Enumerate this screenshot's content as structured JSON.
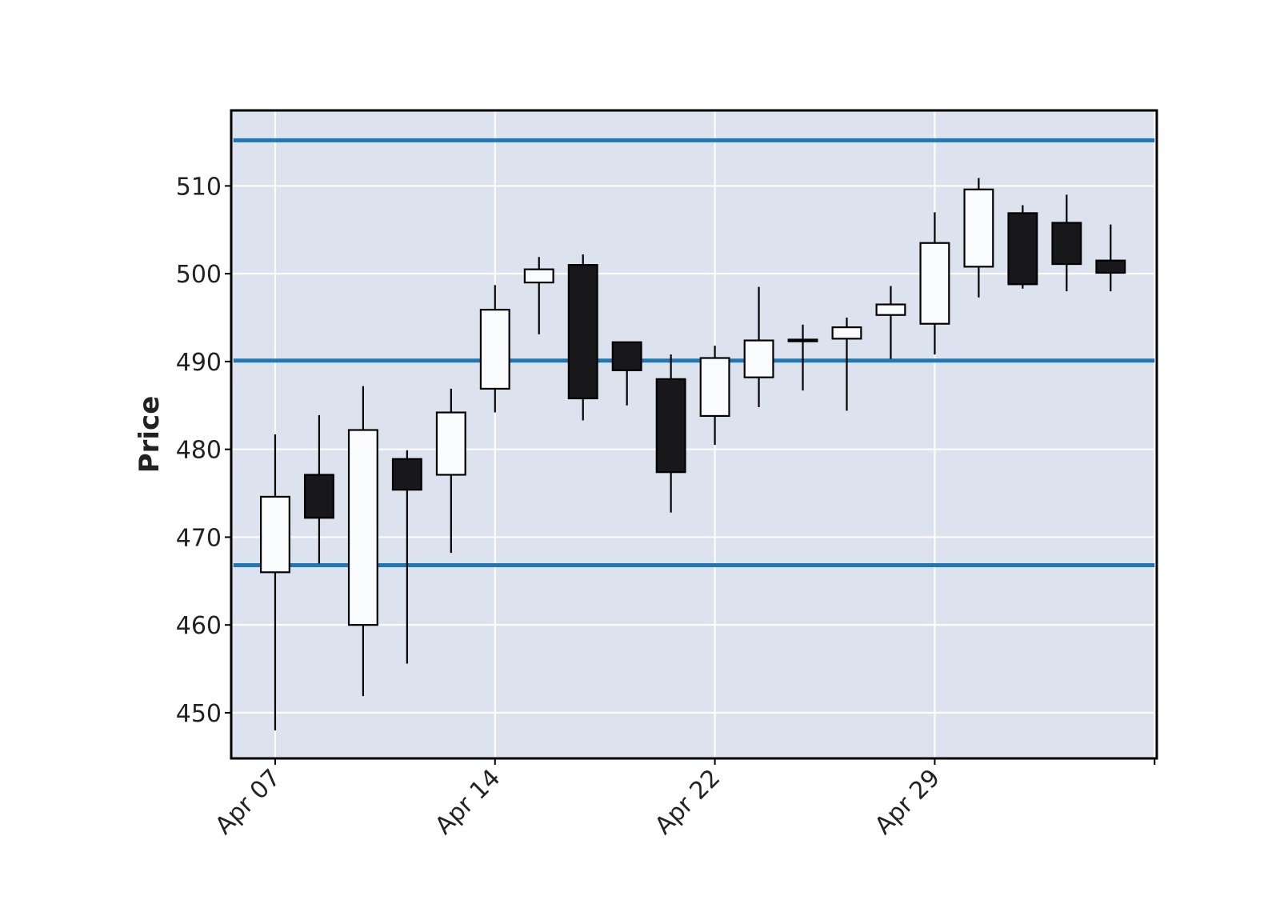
{
  "chart_data": {
    "type": "candlestick",
    "title": "",
    "xlabel": "",
    "ylabel": "Price",
    "ylim": [
      444.8,
      518.6
    ],
    "grid": true,
    "colors": {
      "background": "#dde3ee",
      "grid": "#ffffff",
      "up_body": "#fafbfd",
      "down_body": "#18181a",
      "outline": "#000000",
      "hline": "#1f77b4"
    },
    "yticks": [
      450,
      460,
      470,
      480,
      490,
      500,
      510
    ],
    "xticks": [
      {
        "index": 0,
        "label": "Apr 07"
      },
      {
        "index": 5,
        "label": "Apr 14"
      },
      {
        "index": 10,
        "label": "Apr 22"
      },
      {
        "index": 15,
        "label": "Apr 29"
      },
      {
        "index": 20,
        "label": ""
      }
    ],
    "hlines": [
      515.2,
      490.1,
      466.8
    ],
    "candles": [
      {
        "open": 466.0,
        "high": 481.7,
        "low": 448.0,
        "close": 474.6
      },
      {
        "open": 477.1,
        "high": 483.9,
        "low": 467.0,
        "close": 472.2
      },
      {
        "open": 460.0,
        "high": 487.2,
        "low": 451.9,
        "close": 482.2
      },
      {
        "open": 478.9,
        "high": 479.9,
        "low": 455.6,
        "close": 475.4
      },
      {
        "open": 477.1,
        "high": 486.9,
        "low": 468.2,
        "close": 484.2
      },
      {
        "open": 486.9,
        "high": 498.7,
        "low": 484.2,
        "close": 495.9
      },
      {
        "open": 499.0,
        "high": 501.9,
        "low": 493.1,
        "close": 500.5
      },
      {
        "open": 501.0,
        "high": 502.2,
        "low": 483.3,
        "close": 485.8
      },
      {
        "open": 492.2,
        "high": 492.2,
        "low": 485.0,
        "close": 489.0
      },
      {
        "open": 488.0,
        "high": 490.8,
        "low": 472.8,
        "close": 477.4
      },
      {
        "open": 483.8,
        "high": 491.8,
        "low": 480.5,
        "close": 490.4
      },
      {
        "open": 488.2,
        "high": 498.5,
        "low": 484.8,
        "close": 492.4
      },
      {
        "open": 492.3,
        "high": 494.2,
        "low": 486.7,
        "close": 492.5
      },
      {
        "open": 492.6,
        "high": 495.0,
        "low": 484.4,
        "close": 493.9
      },
      {
        "open": 495.3,
        "high": 498.6,
        "low": 490.3,
        "close": 496.5
      },
      {
        "open": 494.3,
        "high": 507.0,
        "low": 490.8,
        "close": 503.5
      },
      {
        "open": 500.8,
        "high": 510.9,
        "low": 497.3,
        "close": 509.6
      },
      {
        "open": 506.9,
        "high": 507.8,
        "low": 498.3,
        "close": 498.8
      },
      {
        "open": 505.8,
        "high": 509.0,
        "low": 498.0,
        "close": 501.1
      },
      {
        "open": 501.5,
        "high": 505.6,
        "low": 498.0,
        "close": 500.1
      }
    ]
  }
}
